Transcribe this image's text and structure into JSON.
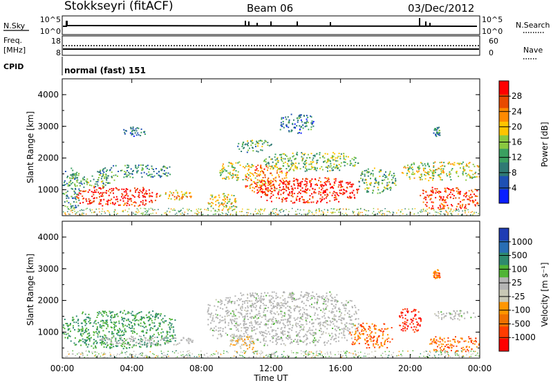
{
  "header": {
    "station": "Stokkseyri (fitACF)",
    "beam": "Beam 06",
    "date": "03/Dec/2012"
  },
  "nsky_panel": {
    "left_label": "N.Sky",
    "right_label": "N.Search",
    "left_ticks": [
      "10^5",
      "10^0"
    ],
    "right_ticks": [
      "10^5",
      "10^0"
    ]
  },
  "freq_panel": {
    "left_label_line1": "Freq.",
    "left_label_line2": "[MHz]",
    "right_label": "Nave",
    "left_ticks": [
      "18",
      "8"
    ],
    "right_ticks": [
      "60",
      "0"
    ]
  },
  "cpid": {
    "label": "CPID",
    "value": "normal (fast) 151"
  },
  "power_panel": {
    "ylabel": "Slant Range [km]",
    "yticks": [
      "4000",
      "3000",
      "2000",
      "1000"
    ],
    "colorbar_label": "Power [dB]",
    "colorbar_ticks": [
      "28",
      "24",
      "20",
      "16",
      "12",
      "8",
      "4"
    ],
    "colorbar_colors": [
      "#ff0000",
      "#e84a00",
      "#ff8a00",
      "#ffc400",
      "#8ac840",
      "#3aa060",
      "#2f7a74",
      "#1e50b4",
      "#0a1eff"
    ]
  },
  "velocity_panel": {
    "ylabel": "Slant Range [km]",
    "yticks": [
      "4000",
      "3000",
      "2000",
      "1000"
    ],
    "colorbar_label": "Velocity [m s⁻¹]",
    "colorbar_ticks": [
      "1000",
      "500",
      "100",
      "25",
      "-25",
      "-100",
      "-500",
      "-1000"
    ],
    "colorbar_colors": [
      "#1e3cb4",
      "#286eb4",
      "#2e8a6e",
      "#50b436",
      "#b4b4b4",
      "#c8c8b4",
      "#ff9600",
      "#f07000",
      "#ff3c00",
      "#ff0000"
    ]
  },
  "xaxis": {
    "label": "Time UT",
    "ticks": [
      "00:00",
      "04:00",
      "08:00",
      "12:00",
      "16:00",
      "20:00",
      "00:00"
    ]
  },
  "chart_data": {
    "type": "heatmap",
    "title": "Stokkseyri (fitACF)  Beam 06  03/Dec/2012",
    "xlabel": "Time UT",
    "ylabel": "Slant Range [km]",
    "x_range_hours": [
      0,
      24
    ],
    "y_range_km": [
      180,
      4500
    ],
    "power_scale_dB": [
      0,
      30
    ],
    "velocity_scale_ms": [
      -1000,
      1000
    ],
    "power_echo_regions": [
      {
        "t_start": 0.0,
        "t_end": 1.0,
        "r_min": 400,
        "r_max": 1700,
        "power_dB": 10
      },
      {
        "t_start": 0.3,
        "t_end": 3.0,
        "r_min": 1100,
        "r_max": 1500,
        "power_dB": 12
      },
      {
        "t_start": 2.0,
        "t_end": 6.4,
        "r_min": 1400,
        "r_max": 1800,
        "power_dB": 10
      },
      {
        "t_start": 0.8,
        "t_end": 5.5,
        "r_min": 500,
        "r_max": 1100,
        "power_dB": 28
      },
      {
        "t_start": 5.5,
        "t_end": 7.5,
        "r_min": 700,
        "r_max": 1000,
        "power_dB": 20
      },
      {
        "t_start": 3.5,
        "t_end": 4.8,
        "r_min": 2700,
        "r_max": 3000,
        "power_dB": 8
      },
      {
        "t_start": 8.3,
        "t_end": 10.0,
        "r_min": 300,
        "r_max": 900,
        "power_dB": 18
      },
      {
        "t_start": 9.0,
        "t_end": 11.0,
        "r_min": 1300,
        "r_max": 1900,
        "power_dB": 16
      },
      {
        "t_start": 10.5,
        "t_end": 13.0,
        "r_min": 900,
        "r_max": 1800,
        "power_dB": 22
      },
      {
        "t_start": 11.0,
        "t_end": 17.0,
        "r_min": 600,
        "r_max": 1400,
        "power_dB": 28
      },
      {
        "t_start": 11.5,
        "t_end": 17.0,
        "r_min": 1600,
        "r_max": 2200,
        "power_dB": 14
      },
      {
        "t_start": 10.0,
        "t_end": 12.0,
        "r_min": 2200,
        "r_max": 2600,
        "power_dB": 12
      },
      {
        "t_start": 12.5,
        "t_end": 14.5,
        "r_min": 2800,
        "r_max": 3400,
        "power_dB": 8
      },
      {
        "t_start": 17.0,
        "t_end": 19.2,
        "r_min": 900,
        "r_max": 1700,
        "power_dB": 12
      },
      {
        "t_start": 19.5,
        "t_end": 24.0,
        "r_min": 1300,
        "r_max": 1900,
        "power_dB": 16
      },
      {
        "t_start": 20.5,
        "t_end": 24.0,
        "r_min": 400,
        "r_max": 1100,
        "power_dB": 26
      },
      {
        "t_start": 21.3,
        "t_end": 21.7,
        "r_min": 2700,
        "r_max": 3000,
        "power_dB": 10
      }
    ],
    "velocity_echo_regions": [
      {
        "t_start": 0.0,
        "t_end": 6.5,
        "r_min": 500,
        "r_max": 1700,
        "velocity_ms": 100
      },
      {
        "t_start": 2.0,
        "t_end": 7.5,
        "r_min": 600,
        "r_max": 900,
        "velocity_ms": 0
      },
      {
        "t_start": 8.3,
        "t_end": 17.0,
        "r_min": 600,
        "r_max": 2300,
        "velocity_ms": 0
      },
      {
        "t_start": 9.5,
        "t_end": 11.0,
        "r_min": 400,
        "r_max": 900,
        "velocity_ms": -100
      },
      {
        "t_start": 16.5,
        "t_end": 19.0,
        "r_min": 500,
        "r_max": 1300,
        "velocity_ms": -500
      },
      {
        "t_start": 19.3,
        "t_end": 20.7,
        "r_min": 1000,
        "r_max": 1800,
        "velocity_ms": -1000
      },
      {
        "t_start": 21.3,
        "t_end": 23.8,
        "r_min": 1400,
        "r_max": 1700,
        "velocity_ms": 0
      },
      {
        "t_start": 21.3,
        "t_end": 21.7,
        "r_min": 2700,
        "r_max": 3000,
        "velocity_ms": -500
      },
      {
        "t_start": 21.0,
        "t_end": 24.0,
        "r_min": 400,
        "r_max": 900,
        "velocity_ms": -500
      }
    ]
  }
}
